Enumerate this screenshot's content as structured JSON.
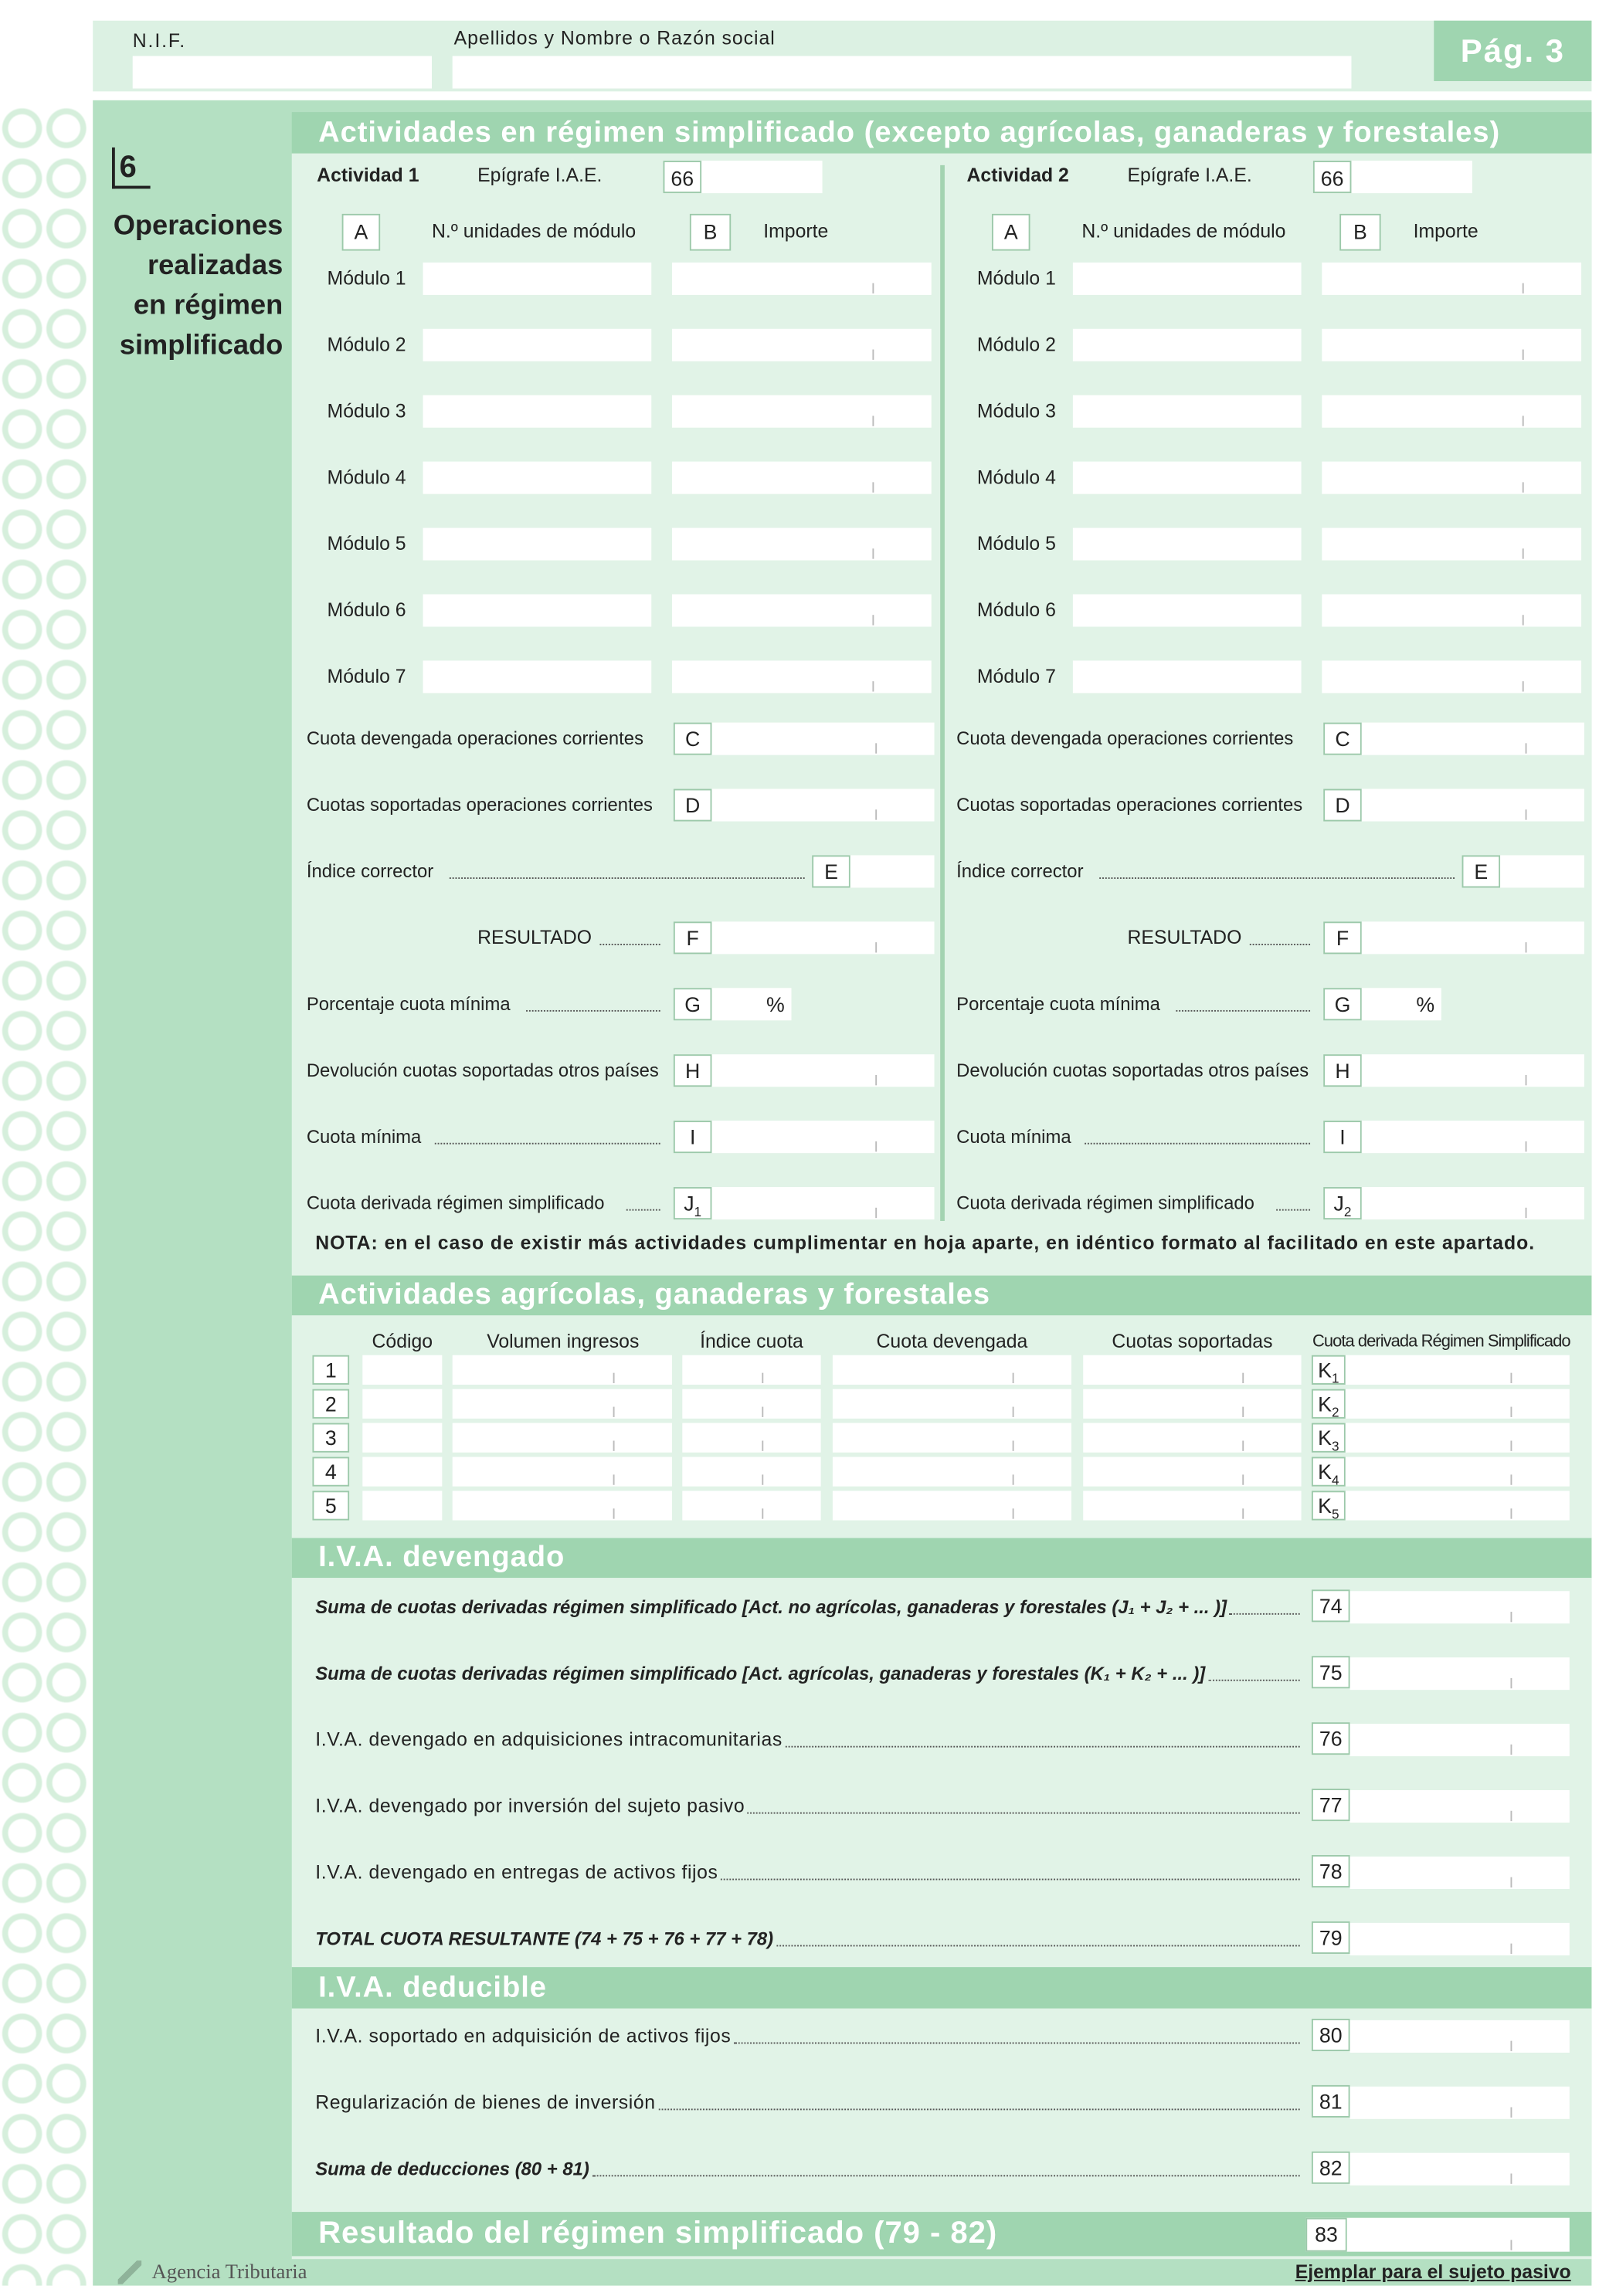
{
  "header": {
    "nif_label": "N.I.F.",
    "name_label": "Apellidos y Nombre o Razón social",
    "page": "Pág. 3"
  },
  "section": {
    "number": "6",
    "title_lines": [
      "Operaciones",
      "realizadas",
      "en régimen",
      "simplificado"
    ]
  },
  "simplified": {
    "title": "Actividades en régimen simplificado (excepto agrícolas, ganaderas y forestales)",
    "activities": [
      {
        "label": "Actividad 1",
        "epigrafe_label": "Epígrafe I.A.E.",
        "epigrafe_code": "66",
        "col_a_letter": "A",
        "col_a_label": "N.º unidades de módulo",
        "col_b_letter": "B",
        "col_b_label": "Importe",
        "modules": [
          "Módulo 1",
          "Módulo 2",
          "Módulo 3",
          "Módulo 4",
          "Módulo 5",
          "Módulo 6",
          "Módulo 7"
        ],
        "rows": [
          {
            "label": "Cuota devengada operaciones corrientes",
            "key": "C"
          },
          {
            "label": "Cuotas soportadas operaciones corrientes",
            "key": "D"
          },
          {
            "label": "Índice corrector",
            "key": "E"
          },
          {
            "label": "RESULTADO",
            "key": "F"
          },
          {
            "label": "Porcentaje cuota mínima",
            "key": "G",
            "suffix": "%"
          },
          {
            "label": "Devolución cuotas soportadas otros países",
            "key": "H"
          },
          {
            "label": "Cuota mínima",
            "key": "I"
          },
          {
            "label": "Cuota derivada régimen simplificado",
            "key": "J",
            "sub": "1"
          }
        ]
      },
      {
        "label": "Actividad 2",
        "epigrafe_label": "Epígrafe I.A.E.",
        "epigrafe_code": "66",
        "col_a_letter": "A",
        "col_a_label": "N.º unidades de módulo",
        "col_b_letter": "B",
        "col_b_label": "Importe",
        "modules": [
          "Módulo 1",
          "Módulo 2",
          "Módulo 3",
          "Módulo 4",
          "Módulo 5",
          "Módulo 6",
          "Módulo 7"
        ],
        "rows": [
          {
            "label": "Cuota devengada operaciones corrientes",
            "key": "C"
          },
          {
            "label": "Cuotas soportadas operaciones corrientes",
            "key": "D"
          },
          {
            "label": "Índice corrector",
            "key": "E"
          },
          {
            "label": "RESULTADO",
            "key": "F"
          },
          {
            "label": "Porcentaje cuota mínima",
            "key": "G",
            "suffix": "%"
          },
          {
            "label": "Devolución cuotas soportadas otros países",
            "key": "H"
          },
          {
            "label": "Cuota mínima",
            "key": "I"
          },
          {
            "label": "Cuota derivada régimen simplificado",
            "key": "J",
            "sub": "2"
          }
        ]
      }
    ],
    "note": "NOTA: en el caso de existir más actividades cumplimentar en hoja aparte, en idéntico formato al facilitado en este apartado."
  },
  "agricultural": {
    "title": "Actividades agrícolas, ganaderas y forestales",
    "headers": [
      "Código",
      "Volumen ingresos",
      "Índice cuota",
      "Cuota devengada",
      "Cuotas soportadas",
      "Cuota derivada Régimen Simplificado"
    ],
    "rows": [
      {
        "num": "1",
        "key": "K",
        "sub": "1"
      },
      {
        "num": "2",
        "key": "K",
        "sub": "2"
      },
      {
        "num": "3",
        "key": "K",
        "sub": "3"
      },
      {
        "num": "4",
        "key": "K",
        "sub": "4"
      },
      {
        "num": "5",
        "key": "K",
        "sub": "5"
      }
    ]
  },
  "iva_devengado": {
    "title": "I.V.A. devengado",
    "rows": [
      {
        "label": "Suma de cuotas derivadas régimen simplificado [Act. no agrícolas, ganaderas y forestales (J₁ + J₂ + ... )]",
        "box": "74",
        "emphasis": true
      },
      {
        "label": "Suma de cuotas derivadas régimen simplificado [Act. agrícolas, ganaderas y forestales (K₁ + K₂ + ... )]",
        "box": "75",
        "emphasis": true
      },
      {
        "label": "I.V.A. devengado en adquisiciones intracomunitarias",
        "box": "76"
      },
      {
        "label": "I.V.A. devengado por inversión del sujeto pasivo",
        "box": "77"
      },
      {
        "label": "I.V.A. devengado en entregas de activos fijos",
        "box": "78"
      },
      {
        "label": "TOTAL CUOTA RESULTANTE (74 + 75 + 76 + 77 + 78)",
        "box": "79",
        "emphasis": true
      }
    ]
  },
  "iva_deducible": {
    "title": "I.V.A. deducible",
    "rows": [
      {
        "label": "I.V.A. soportado en adquisición de activos fijos",
        "box": "80"
      },
      {
        "label": "Regularización de bienes de inversión",
        "box": "81"
      },
      {
        "label": "Suma de deducciones (80 + 81)",
        "box": "82",
        "emphasis": true
      }
    ]
  },
  "result": {
    "title": "Resultado del régimen simplificado (79 - 82)",
    "box": "83"
  },
  "footer": {
    "agency": "Agencia Tributaria",
    "copy": "Ejemplar para el sujeto pasivo"
  }
}
